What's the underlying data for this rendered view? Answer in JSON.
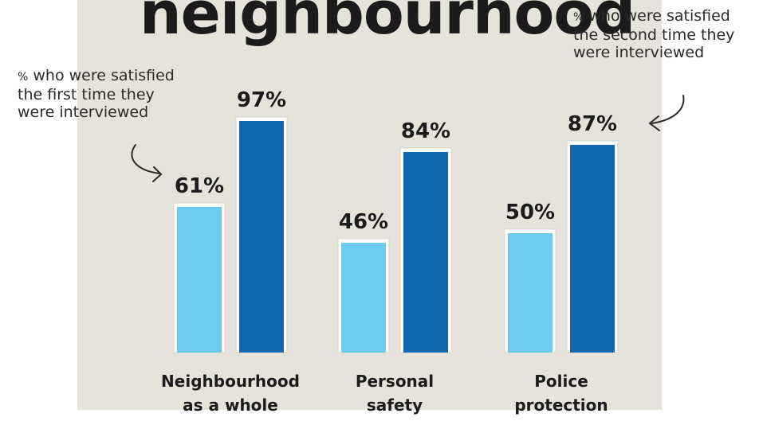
{
  "title": "neighbourhood",
  "annotations": {
    "first": {
      "pct_symbol": "%",
      "text": "who were satisfied the first time they were interviewed"
    },
    "second": {
      "pct_symbol": "%",
      "text": "who were satisfied the second time they were interviewed"
    }
  },
  "colors": {
    "panel": "#e6e3da",
    "first_interview": "#6ccbee",
    "second_interview": "#1167b1",
    "bar_frame": "#ffffff",
    "text": "#1c1b1b"
  },
  "chart_data": {
    "type": "bar",
    "categories": [
      "Neighbourhood as a whole",
      "Personal safety",
      "Police protection"
    ],
    "category_lines": [
      [
        "Neighbourhood",
        "as a whole"
      ],
      [
        "Personal",
        "safety"
      ],
      [
        "Police",
        "protection"
      ]
    ],
    "series": [
      {
        "values": [
          61,
          46,
          50
        ],
        "labels": [
          "61%",
          "46%",
          "50%"
        ]
      },
      {
        "values": [
          97,
          84,
          87
        ],
        "labels": [
          "97%",
          "84%",
          "87%"
        ]
      }
    ],
    "ylim": [
      0,
      100
    ],
    "grid": false,
    "axes_visible": false,
    "legend": "annotations"
  }
}
